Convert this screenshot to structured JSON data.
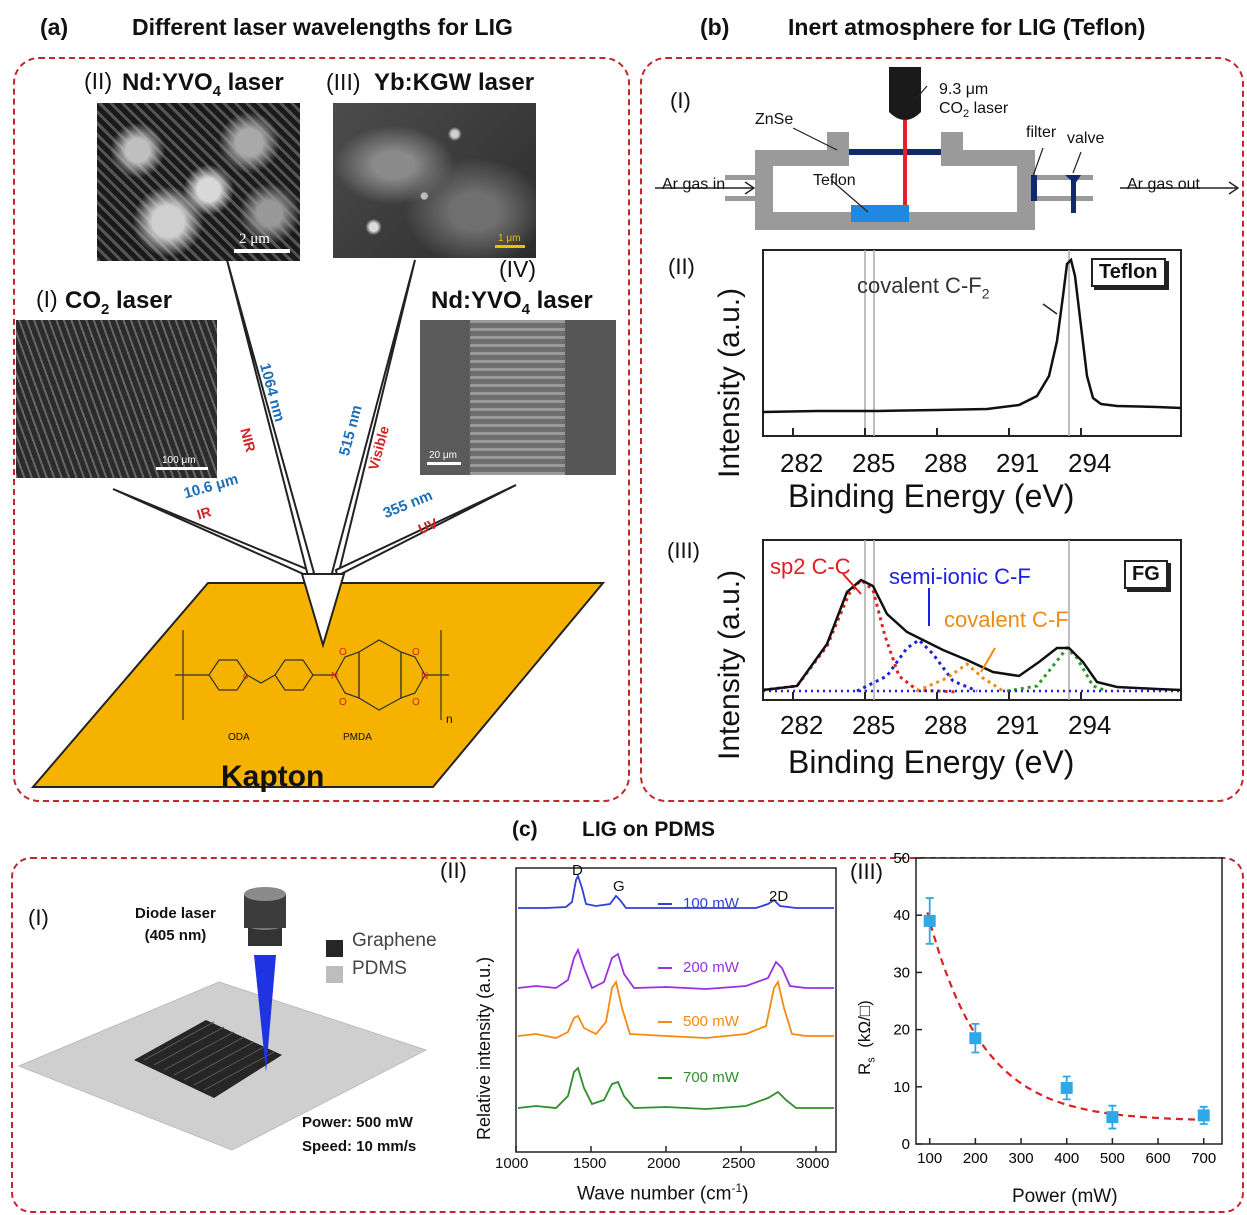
{
  "panel_a": {
    "letter": "(a)",
    "title": "Different laser wavelengths for LIG",
    "lasers": [
      {
        "roman": "(I)",
        "name": "CO",
        "sub": "2",
        "suffix": " laser",
        "wavelength": "10.6 μm",
        "region": "IR",
        "scale_bar": "100 μm"
      },
      {
        "roman": "(II)",
        "name": "Nd:YVO",
        "sub": "4",
        "suffix": " laser",
        "wavelength": "1064 nm",
        "region": "NIR",
        "scale_bar": "2 μm"
      },
      {
        "roman": "(III)",
        "name": "Yb:KGW laser",
        "sub": "",
        "suffix": "",
        "wavelength": "515 nm",
        "region": "Visible",
        "scale_bar": "1 μm"
      },
      {
        "roman": "(IV)",
        "name": "Nd:YVO",
        "sub": "4",
        "suffix": " laser",
        "wavelength": "355 nm",
        "region": "UV",
        "scale_bar": "20 μm"
      }
    ],
    "substrate": "Kapton",
    "molecule_labels": {
      "left": "ODA",
      "right": "PMDA",
      "repeat": "n"
    }
  },
  "panel_b": {
    "letter": "(b)",
    "title": "Inert atmosphere for LIG (Teflon)",
    "setup": {
      "roman": "(I)",
      "laser_line1": "9.3 μm",
      "laser_line2": "CO",
      "laser_line2_sub": "2",
      "laser_line2_suffix": " laser",
      "window": "ZnSe",
      "filter": "filter",
      "valve": "valve",
      "sample": "Teflon",
      "gas_in": "Ar gas in",
      "gas_out": "Ar gas out"
    },
    "spectrum_II": {
      "roman": "(II)",
      "badge": "Teflon",
      "peak_label": "covalent C-F",
      "peak_label_sub": "2",
      "ylabel": "Intensity (a.u.)",
      "xlabel": "Binding Energy (eV)",
      "ticks": [
        "282",
        "285",
        "288",
        "291",
        "294"
      ]
    },
    "spectrum_III": {
      "roman": "(III)",
      "badge": "FG",
      "labels": [
        "sp2 C-C",
        "semi-ionic C-F",
        "covalent C-F"
      ],
      "ylabel": "Intensity (a.u.)",
      "xlabel": "Binding Energy (eV)",
      "ticks": [
        "282",
        "285",
        "288",
        "291",
        "294"
      ]
    }
  },
  "panel_c": {
    "letter": "(c)",
    "title": "LIG on PDMS",
    "setup": {
      "roman": "(I)",
      "laser_line1": "Diode laser",
      "laser_line2": "(405 nm)",
      "legend_graphene": "Graphene",
      "legend_pdms": "PDMS",
      "power": "Power: 500 mW",
      "speed": "Speed: 10 mm/s"
    },
    "raman": {
      "roman": "(II)",
      "ylabel": "Relative intensity (a.u.)",
      "xlabel": "Wave number (cm",
      "xlabel_sup": "-1",
      "xlabel_end": ")",
      "peaks": [
        "D",
        "G",
        "2D"
      ],
      "ticks": [
        "1000",
        "1500",
        "2000",
        "2500",
        "3000"
      ],
      "series": [
        {
          "name": "100 mW",
          "color": "#2f3fd8"
        },
        {
          "name": "200 mW",
          "color": "#9b30e0"
        },
        {
          "name": "500 mW",
          "color": "#f58a10"
        },
        {
          "name": "700 mW",
          "color": "#2f8f28"
        }
      ]
    },
    "resistance": {
      "roman": "(III)",
      "ylabel": "R",
      "ylabel_sub": "s",
      "ylabel_unit": "(kΩ/□)",
      "xlabel": "Power (mW)",
      "xticks": [
        "100",
        "200",
        "300",
        "400",
        "500",
        "600",
        "700"
      ],
      "yticks": [
        "0",
        "10",
        "20",
        "30",
        "40",
        "50"
      ],
      "xlim": [
        70,
        740
      ],
      "ylim": [
        0,
        50
      ],
      "points": [
        {
          "x": 100,
          "y": 39,
          "err": 4
        },
        {
          "x": 200,
          "y": 18.5,
          "err": 2.5
        },
        {
          "x": 400,
          "y": 9.8,
          "err": 2
        },
        {
          "x": 500,
          "y": 4.7,
          "err": 2
        },
        {
          "x": 700,
          "y": 5,
          "err": 1.5
        }
      ],
      "marker_color": "#2fa8e8",
      "fit_color": "#e02020"
    }
  }
}
